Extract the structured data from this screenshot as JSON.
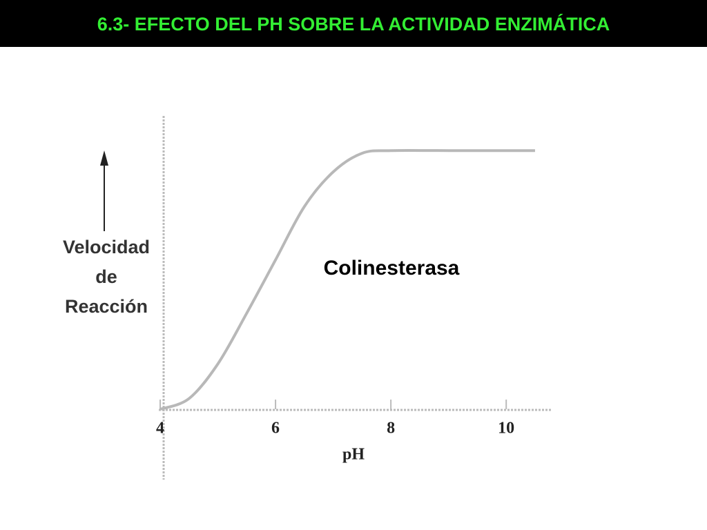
{
  "chart_data": {
    "type": "line",
    "title": "6.3- EFECTO DEL PH SOBRE LA ACTIVIDAD ENZIMÁTICA",
    "x": [
      4,
      4.5,
      5,
      5.5,
      6,
      6.5,
      7,
      7.5,
      8,
      9,
      10,
      10.5
    ],
    "series": [
      {
        "name": "Colinesterasa",
        "color": "#b8b8b8",
        "values": [
          0,
          0.04,
          0.17,
          0.36,
          0.56,
          0.76,
          0.89,
          0.96,
          0.97,
          0.97,
          0.97,
          0.97
        ]
      }
    ],
    "xlim": [
      4,
      10.8
    ],
    "xticks": [
      4,
      6,
      8,
      10
    ],
    "ylim": [
      0,
      1.1
    ],
    "xlabel": "pH",
    "ylabel": [
      "Velocidad",
      "de",
      "Reacción"
    ],
    "grid": false
  }
}
